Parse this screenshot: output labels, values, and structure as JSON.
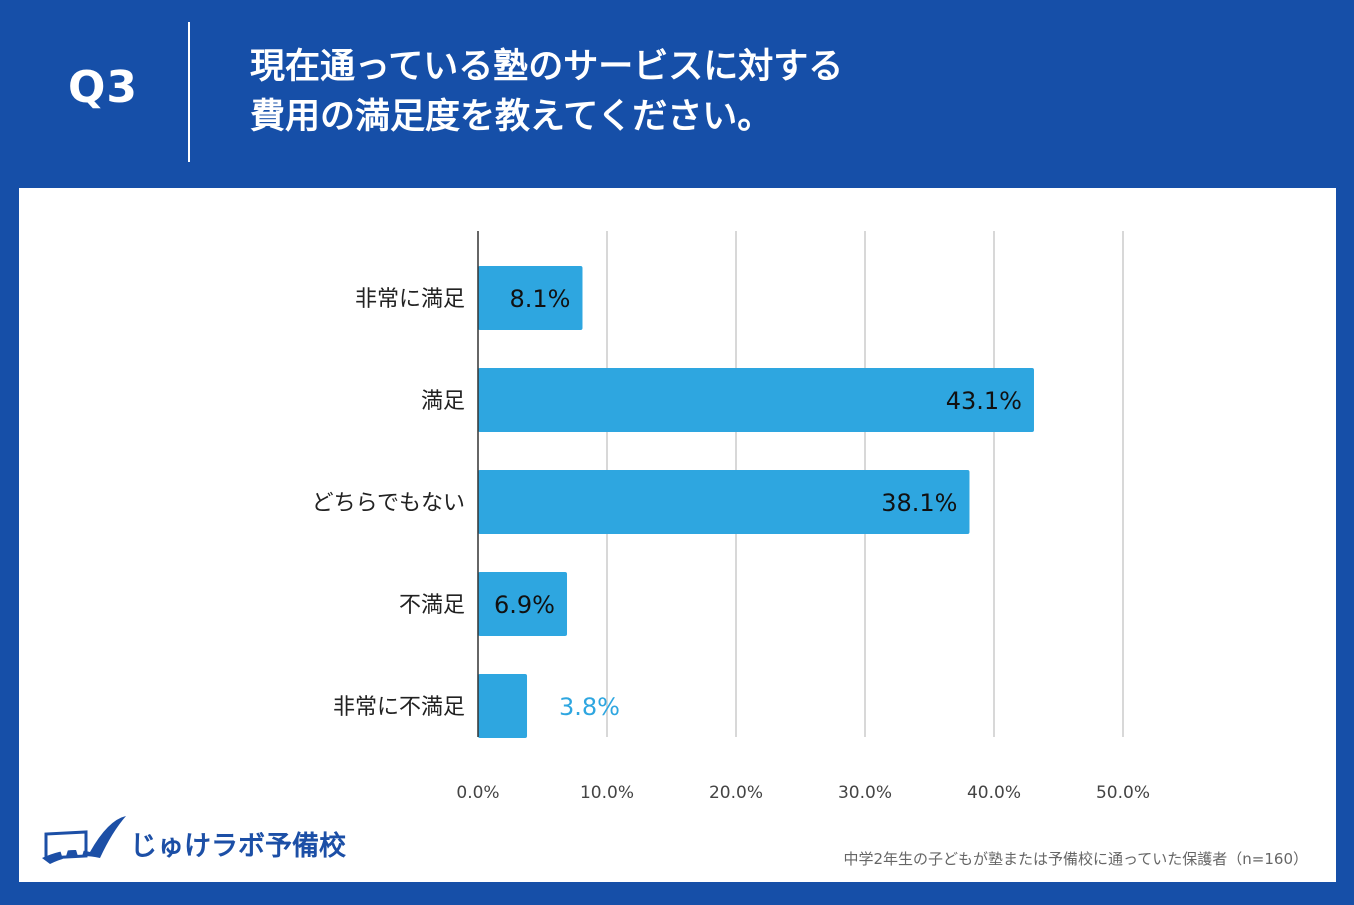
{
  "header": {
    "question_number": "Q3",
    "title_line1": "現在通っている塾のサービスに対する",
    "title_line2": "費用の満足度を教えてください。"
  },
  "chart_data": {
    "type": "bar",
    "orientation": "horizontal",
    "categories": [
      "非常に満足",
      "満足",
      "どちらでもない",
      "不満足",
      "非常に不満足"
    ],
    "values": [
      8.1,
      43.1,
      38.1,
      6.9,
      3.8
    ],
    "value_labels": [
      "8.1%",
      "43.1%",
      "38.1%",
      "6.9%",
      "3.8%"
    ],
    "x_ticks": [
      0,
      10,
      20,
      30,
      40,
      50
    ],
    "x_tick_labels": [
      "0.0%",
      "10.0%",
      "20.0%",
      "30.0%",
      "40.0%",
      "50.0%"
    ],
    "xlim": [
      0,
      50
    ],
    "grid": true,
    "bar_color": "#2ea6e0"
  },
  "logo": {
    "text": "じゅけラボ予備校"
  },
  "footnote": "中学2年生の子どもが塾または予備校に通っていた保護者（n=160）",
  "colors": {
    "background": "#164fa8",
    "panel": "#ffffff",
    "bar": "#2ea6e0",
    "logo": "#1c4fa6"
  }
}
